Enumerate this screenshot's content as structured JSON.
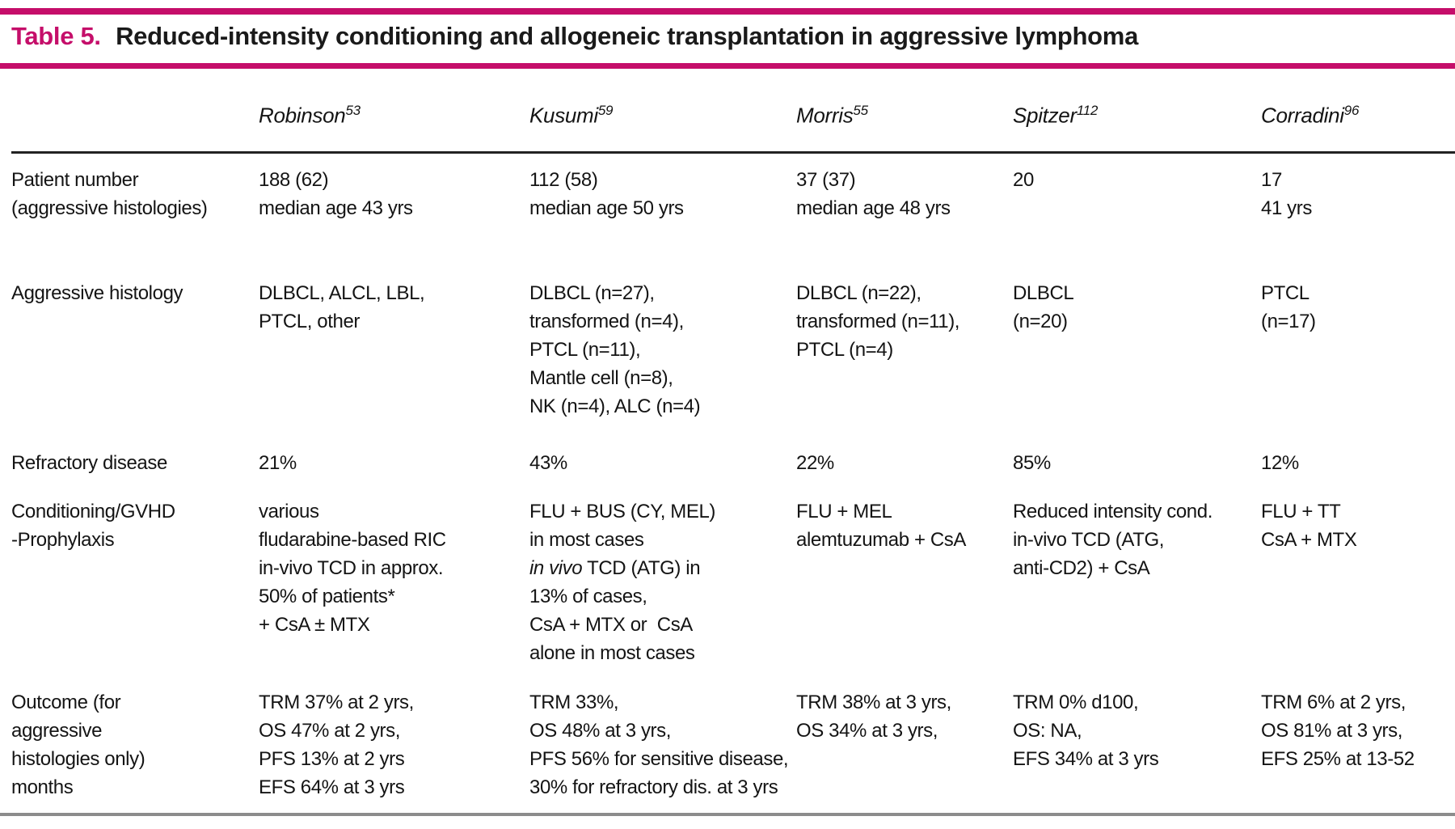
{
  "colors": {
    "accent": "#c50e6a",
    "rule_dark": "#222222",
    "rule_gray": "#8c8c8c"
  },
  "title": {
    "label": "Table 5.",
    "text": "Reduced-intensity conditioning and allogeneic transplantation in aggressive lymphoma"
  },
  "columns": [
    {
      "name": "Robinson",
      "ref": "53"
    },
    {
      "name": "Kusumi",
      "ref": "59"
    },
    {
      "name": "Morris",
      "ref": "55"
    },
    {
      "name": "Spitzer",
      "ref": "112"
    },
    {
      "name": "Corradini",
      "ref": "96"
    }
  ],
  "rows": [
    {
      "label": "Patient number\n(aggressive histologies)",
      "cells": [
        "188 (62)\nmedian age 43 yrs",
        "112 (58)\nmedian age 50 yrs",
        "37 (37)\nmedian age 48 yrs",
        "20",
        "17\n41 yrs"
      ]
    },
    {
      "label": "Aggressive histology",
      "cells": [
        "DLBCL, ALCL, LBL,\nPTCL, other",
        "DLBCL (n=27),\ntransformed (n=4),\nPTCL (n=11),\nMantle cell (n=8),\nNK (n=4), ALC (n=4)",
        "DLBCL (n=22),\ntransformed (n=11),\nPTCL (n=4)",
        "DLBCL\n(n=20)",
        "PTCL\n(n=17)"
      ]
    },
    {
      "label": "Refractory disease",
      "cells": [
        "21%",
        "43%",
        "22%",
        "85%",
        "12%"
      ]
    },
    {
      "label": "Conditioning/GVHD\n-Prophylaxis",
      "cells": [
        "various\nfludarabine-based RIC\nin-vivo TCD in approx.\n50% of patients*\n+ CsA ± MTX",
        {
          "pre": "FLU + BUS (CY, MEL)\nin most cases\n",
          "italic": "in vivo",
          "post": " TCD (ATG) in\n13% of cases,\nCsA + MTX or  CsA\nalone in most cases"
        },
        "FLU + MEL\nalemtuzumab + CsA",
        "Reduced intensity cond.\nin-vivo TCD (ATG,\nanti-CD2) + CsA",
        "FLU + TT\nCsA + MTX"
      ]
    },
    {
      "label": "Outcome (for\naggressive\nhistologies only)\nmonths",
      "cells": [
        "TRM 37% at 2 yrs,\nOS 47% at 2 yrs,\nPFS 13% at 2 yrs\nEFS 64% at 3 yrs",
        "TRM 33%,\nOS 48% at 3 yrs,\nPFS 56% for sensitive disease,\n30% for refractory dis. at 3 yrs",
        "TRM 38% at 3 yrs,\nOS 34% at 3 yrs,",
        "TRM 0% d100,\nOS: NA,\nEFS 34% at 3 yrs",
        "TRM 6% at 2 yrs,\nOS 81% at 3 yrs,\nEFS 25% at 13-52"
      ]
    }
  ]
}
